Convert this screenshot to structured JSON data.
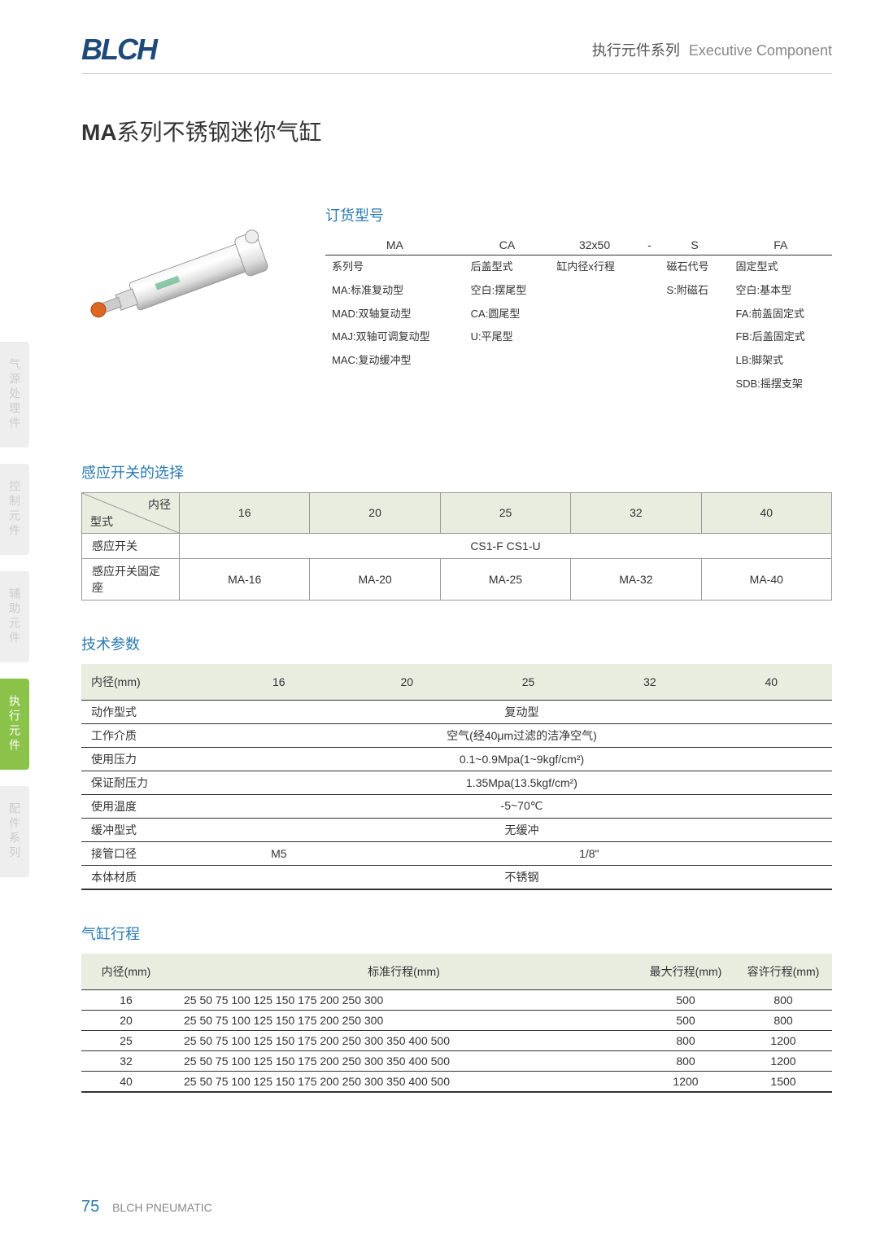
{
  "header": {
    "logo": "BLCH",
    "category_cn": "执行元件系列",
    "category_en": "Executive Component"
  },
  "title": {
    "bold": "MA",
    "rest": "系列不锈钢迷你气缸"
  },
  "order": {
    "label": "订货型号",
    "columns": [
      "MA",
      "CA",
      "32x50",
      "-",
      "S",
      "FA"
    ],
    "rows": [
      [
        "系列号",
        "后盖型式",
        "缸内径x行程",
        "",
        "磁石代号",
        "固定型式"
      ],
      [
        "MA:标准复动型",
        "空白:摆尾型",
        "",
        "",
        "S:附磁石",
        "空白:基本型"
      ],
      [
        "MAD:双轴复动型",
        "CA:圆尾型",
        "",
        "",
        "",
        "FA:前盖固定式"
      ],
      [
        "MAJ:双轴可调复动型",
        "U:平尾型",
        "",
        "",
        "",
        "FB:后盖固定式"
      ],
      [
        "MAC:复动缓冲型",
        "",
        "",
        "",
        "",
        "LB:脚架式"
      ],
      [
        "",
        "",
        "",
        "",
        "",
        "SDB:摇摆支架"
      ]
    ]
  },
  "side_tabs": [
    {
      "label": "气源处理件",
      "active": false
    },
    {
      "label": "控制元件",
      "active": false
    },
    {
      "label": "辅助元件",
      "active": false
    },
    {
      "label": "执行元件",
      "active": true
    },
    {
      "label": "配件系列",
      "active": false
    }
  ],
  "sensor": {
    "label": "感应开关的选择",
    "diag_top": "内径",
    "diag_bot": "型式",
    "cols": [
      "16",
      "20",
      "25",
      "32",
      "40"
    ],
    "row1_label": "感应开关",
    "row1_val": "CS1-F  CS1-U",
    "row2_label": "感应开关固定座",
    "row2_vals": [
      "MA-16",
      "MA-20",
      "MA-25",
      "MA-32",
      "MA-40"
    ]
  },
  "tech": {
    "label": "技术参数",
    "header": [
      "内径(mm)",
      "16",
      "20",
      "25",
      "32",
      "40"
    ],
    "rows": [
      {
        "label": "动作型式",
        "span": 5,
        "val": "复动型"
      },
      {
        "label": "工作介质",
        "span": 5,
        "val": "空气(经40μm过滤的洁净空气)"
      },
      {
        "label": "使用压力",
        "span": 5,
        "val": "0.1~0.9Mpa(1~9kgf/cm²)"
      },
      {
        "label": "保证耐压力",
        "span": 5,
        "val": "1.35Mpa(13.5kgf/cm²)"
      },
      {
        "label": "使用温度",
        "span": 5,
        "val": "-5~70℃"
      },
      {
        "label": "缓冲型式",
        "span": 5,
        "val": "无缓冲"
      }
    ],
    "port_label": "接管口径",
    "port_vals": [
      "M5",
      "1/8\""
    ],
    "mat_label": "本体材质",
    "mat_val": "不锈钢"
  },
  "stroke": {
    "label": "气缸行程",
    "header": [
      "内径(mm)",
      "标准行程(mm)",
      "最大行程(mm)",
      "容许行程(mm)"
    ],
    "rows": [
      [
        "16",
        "25 50 75 100 125 150 175 200 250 300",
        "500",
        "800"
      ],
      [
        "20",
        "25 50 75 100 125 150 175 200 250 300",
        "500",
        "800"
      ],
      [
        "25",
        "25 50 75 100 125 150 175 200 250 300 350 400 500",
        "800",
        "1200"
      ],
      [
        "32",
        "25 50 75 100 125 150 175 200 250 300 350 400 500",
        "800",
        "1200"
      ],
      [
        "40",
        "25 50 75 100 125 150 175 200 250 300 350 400 500",
        "1200",
        "1500"
      ]
    ]
  },
  "footer": {
    "page": "75",
    "brand": "BLCH PNEUMATIC"
  },
  "colors": {
    "accent": "#2a7ab0",
    "logo": "#1e4a7a",
    "table_header_bg": "#e8ede0",
    "tab_active_bg": "#8bc34a",
    "tab_inactive_bg": "#eeeeee"
  }
}
